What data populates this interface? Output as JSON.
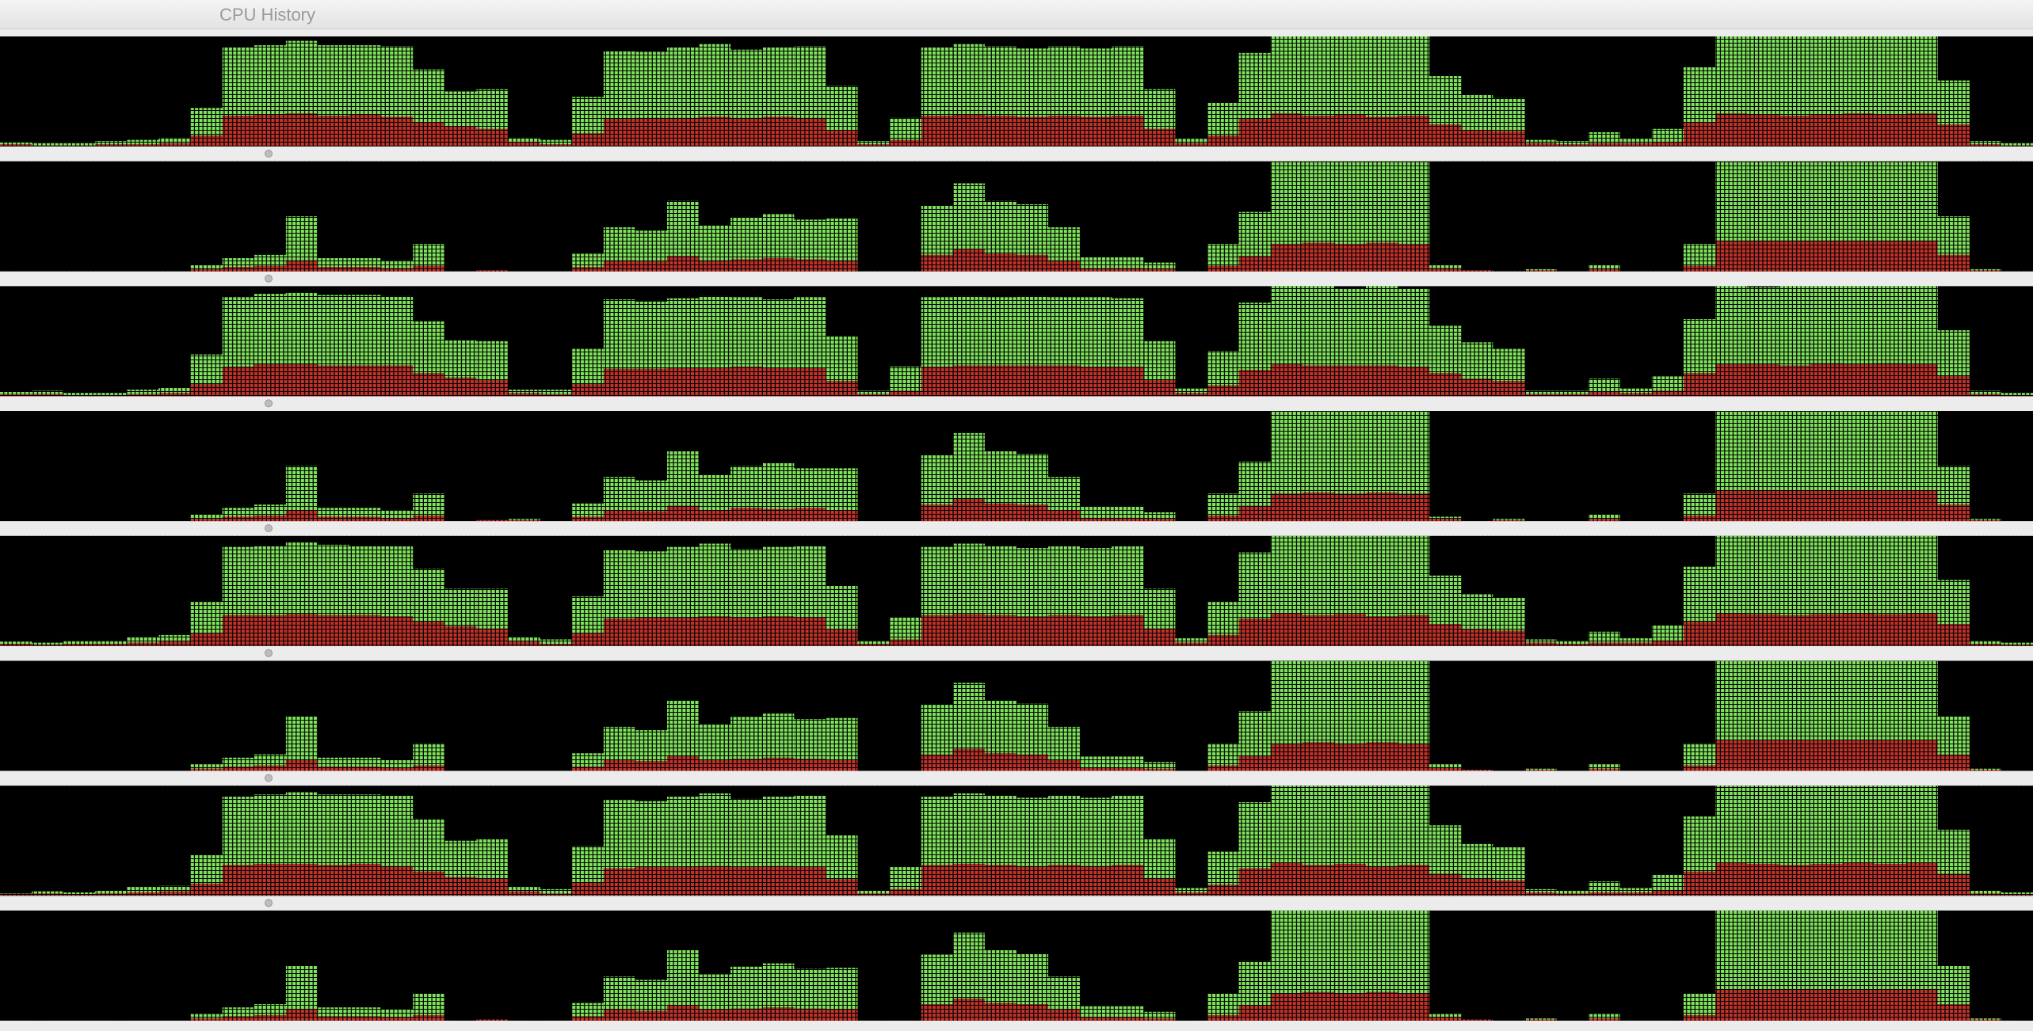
{
  "window": {
    "title": "CPU History"
  },
  "chart_data": [
    {
      "type": "bar",
      "stacked": true,
      "ylim": [
        0,
        100
      ],
      "series": [
        {
          "color": "#c3332b",
          "values": [
            2,
            1,
            1,
            2,
            2,
            3,
            10,
            28,
            29,
            30,
            28,
            29,
            27,
            22,
            18,
            16,
            4,
            2,
            12,
            25,
            26,
            26,
            27,
            26,
            27,
            26,
            15,
            2,
            6,
            28,
            29,
            28,
            27,
            28,
            27,
            28,
            16,
            3,
            10,
            25,
            30,
            28,
            29,
            27,
            28,
            20,
            15,
            14,
            3,
            2,
            3,
            3,
            4,
            22,
            30,
            29,
            28,
            29,
            30,
            29,
            30,
            20,
            2,
            1
          ]
        },
        {
          "color": "#7fe35b",
          "values": [
            2,
            2,
            2,
            3,
            4,
            5,
            25,
            62,
            63,
            66,
            64,
            63,
            64,
            48,
            32,
            36,
            4,
            4,
            33,
            62,
            60,
            64,
            66,
            62,
            63,
            65,
            40,
            3,
            20,
            62,
            64,
            63,
            62,
            63,
            62,
            63,
            36,
            4,
            30,
            60,
            70,
            72,
            71,
            73,
            72,
            44,
            32,
            30,
            3,
            3,
            10,
            4,
            12,
            50,
            70,
            71,
            72,
            71,
            70,
            71,
            70,
            40,
            3,
            2
          ]
        }
      ]
    },
    {
      "type": "bar",
      "stacked": true,
      "ylim": [
        0,
        100
      ],
      "series": [
        {
          "color": "#c3332b",
          "values": [
            0,
            0,
            0,
            0,
            0,
            0,
            2,
            4,
            5,
            10,
            4,
            4,
            3,
            5,
            0,
            1,
            0,
            0,
            4,
            10,
            9,
            14,
            10,
            11,
            12,
            11,
            10,
            0,
            0,
            15,
            20,
            16,
            15,
            10,
            3,
            3,
            2,
            0,
            5,
            14,
            25,
            26,
            25,
            26,
            25,
            3,
            1,
            0,
            1,
            0,
            2,
            0,
            0,
            5,
            28,
            28,
            28,
            28,
            28,
            28,
            28,
            15,
            1,
            0
          ]
        },
        {
          "color": "#7fe35b",
          "values": [
            0,
            0,
            0,
            0,
            0,
            0,
            4,
            8,
            10,
            40,
            8,
            8,
            7,
            20,
            0,
            0,
            0,
            0,
            12,
            30,
            28,
            50,
            32,
            38,
            40,
            36,
            38,
            0,
            0,
            45,
            60,
            48,
            46,
            30,
            10,
            10,
            6,
            0,
            20,
            40,
            75,
            74,
            75,
            74,
            75,
            3,
            0,
            0,
            1,
            0,
            4,
            0,
            0,
            20,
            72,
            72,
            72,
            72,
            72,
            72,
            72,
            35,
            1,
            0
          ]
        }
      ]
    },
    {
      "type": "bar",
      "stacked": true,
      "ylim": [
        0,
        100
      ],
      "series": [
        {
          "color": "#c3332b",
          "values": [
            2,
            2,
            1,
            1,
            2,
            3,
            11,
            27,
            29,
            29,
            28,
            28,
            28,
            21,
            17,
            15,
            3,
            2,
            11,
            25,
            25,
            26,
            26,
            27,
            26,
            26,
            14,
            2,
            5,
            27,
            28,
            28,
            28,
            28,
            27,
            27,
            15,
            3,
            10,
            24,
            29,
            28,
            28,
            28,
            27,
            21,
            16,
            14,
            2,
            2,
            4,
            3,
            5,
            21,
            29,
            29,
            28,
            30,
            29,
            30,
            29,
            19,
            2,
            1
          ]
        },
        {
          "color": "#7fe35b",
          "values": [
            2,
            3,
            2,
            2,
            4,
            5,
            27,
            63,
            64,
            65,
            64,
            64,
            63,
            47,
            34,
            35,
            3,
            4,
            32,
            63,
            61,
            63,
            65,
            63,
            62,
            64,
            41,
            3,
            22,
            63,
            63,
            62,
            63,
            62,
            63,
            62,
            35,
            4,
            31,
            61,
            71,
            72,
            70,
            72,
            71,
            43,
            33,
            29,
            3,
            3,
            12,
            4,
            13,
            49,
            71,
            70,
            72,
            70,
            71,
            70,
            71,
            41,
            3,
            2
          ]
        }
      ]
    },
    {
      "type": "bar",
      "stacked": true,
      "ylim": [
        0,
        100
      ],
      "series": [
        {
          "color": "#c3332b",
          "values": [
            0,
            0,
            0,
            0,
            0,
            0,
            2,
            4,
            5,
            10,
            4,
            4,
            3,
            5,
            0,
            1,
            1,
            0,
            4,
            10,
            9,
            14,
            10,
            12,
            11,
            12,
            10,
            0,
            0,
            15,
            20,
            16,
            15,
            10,
            3,
            3,
            2,
            0,
            5,
            14,
            25,
            26,
            25,
            26,
            25,
            2,
            0,
            1,
            0,
            0,
            2,
            0,
            0,
            5,
            28,
            28,
            28,
            28,
            28,
            28,
            28,
            15,
            1,
            0
          ]
        },
        {
          "color": "#7fe35b",
          "values": [
            0,
            0,
            0,
            0,
            0,
            0,
            4,
            8,
            10,
            40,
            8,
            8,
            7,
            20,
            0,
            0,
            1,
            0,
            12,
            30,
            28,
            50,
            32,
            38,
            42,
            36,
            38,
            0,
            0,
            45,
            60,
            48,
            46,
            30,
            10,
            10,
            6,
            0,
            20,
            40,
            75,
            74,
            75,
            74,
            75,
            2,
            0,
            1,
            0,
            0,
            4,
            0,
            0,
            20,
            72,
            72,
            72,
            72,
            72,
            72,
            72,
            35,
            1,
            0
          ]
        }
      ]
    },
    {
      "type": "bar",
      "stacked": true,
      "ylim": [
        0,
        100
      ],
      "series": [
        {
          "color": "#c3332b",
          "values": [
            2,
            1,
            2,
            2,
            3,
            4,
            12,
            28,
            28,
            29,
            28,
            28,
            27,
            22,
            18,
            16,
            4,
            2,
            12,
            25,
            26,
            26,
            27,
            26,
            27,
            26,
            15,
            2,
            6,
            28,
            29,
            28,
            27,
            28,
            27,
            28,
            16,
            3,
            10,
            25,
            30,
            28,
            29,
            27,
            28,
            20,
            15,
            14,
            3,
            2,
            3,
            3,
            5,
            22,
            30,
            29,
            28,
            29,
            30,
            29,
            30,
            20,
            2,
            1
          ]
        },
        {
          "color": "#7fe35b",
          "values": [
            2,
            2,
            3,
            3,
            5,
            6,
            28,
            62,
            63,
            65,
            64,
            63,
            64,
            48,
            34,
            36,
            4,
            4,
            33,
            62,
            60,
            64,
            66,
            62,
            63,
            65,
            40,
            3,
            20,
            62,
            64,
            63,
            62,
            63,
            62,
            63,
            36,
            4,
            30,
            60,
            70,
            72,
            71,
            73,
            72,
            44,
            32,
            30,
            3,
            3,
            10,
            4,
            14,
            50,
            70,
            71,
            72,
            71,
            70,
            71,
            70,
            40,
            3,
            2
          ]
        }
      ]
    },
    {
      "type": "bar",
      "stacked": true,
      "ylim": [
        0,
        100
      ],
      "series": [
        {
          "color": "#c3332b",
          "values": [
            0,
            0,
            0,
            0,
            0,
            0,
            2,
            4,
            5,
            10,
            4,
            4,
            3,
            5,
            0,
            0,
            0,
            0,
            4,
            10,
            9,
            14,
            10,
            11,
            12,
            11,
            10,
            0,
            0,
            15,
            20,
            16,
            15,
            10,
            3,
            3,
            2,
            0,
            5,
            14,
            25,
            26,
            25,
            26,
            25,
            3,
            1,
            0,
            1,
            0,
            2,
            0,
            0,
            5,
            28,
            28,
            28,
            28,
            28,
            28,
            28,
            15,
            1,
            0
          ]
        },
        {
          "color": "#7fe35b",
          "values": [
            0,
            0,
            0,
            0,
            0,
            0,
            4,
            8,
            10,
            40,
            8,
            8,
            7,
            20,
            0,
            0,
            0,
            0,
            12,
            30,
            28,
            50,
            32,
            38,
            40,
            36,
            38,
            0,
            0,
            45,
            60,
            48,
            46,
            30,
            10,
            10,
            6,
            0,
            20,
            40,
            75,
            74,
            75,
            74,
            75,
            3,
            0,
            0,
            1,
            0,
            4,
            0,
            0,
            20,
            72,
            72,
            72,
            72,
            72,
            72,
            72,
            35,
            1,
            0
          ]
        }
      ]
    },
    {
      "type": "bar",
      "stacked": true,
      "ylim": [
        0,
        100
      ],
      "series": [
        {
          "color": "#c3332b",
          "values": [
            1,
            2,
            1,
            2,
            3,
            4,
            11,
            28,
            29,
            29,
            28,
            29,
            27,
            22,
            17,
            16,
            4,
            2,
            12,
            25,
            26,
            26,
            27,
            26,
            27,
            26,
            15,
            2,
            6,
            28,
            29,
            28,
            27,
            28,
            27,
            28,
            16,
            3,
            10,
            25,
            30,
            28,
            29,
            27,
            28,
            20,
            16,
            14,
            3,
            2,
            3,
            3,
            5,
            22,
            30,
            29,
            28,
            29,
            30,
            29,
            30,
            20,
            2,
            1
          ]
        },
        {
          "color": "#7fe35b",
          "values": [
            1,
            2,
            2,
            3,
            5,
            5,
            26,
            62,
            63,
            65,
            64,
            63,
            64,
            48,
            33,
            36,
            4,
            4,
            33,
            62,
            60,
            64,
            66,
            62,
            63,
            65,
            40,
            3,
            20,
            62,
            64,
            63,
            62,
            63,
            62,
            63,
            36,
            4,
            30,
            60,
            70,
            72,
            71,
            73,
            72,
            44,
            31,
            30,
            3,
            3,
            10,
            4,
            14,
            50,
            70,
            71,
            72,
            71,
            70,
            71,
            70,
            40,
            3,
            2
          ]
        }
      ]
    },
    {
      "type": "bar",
      "stacked": true,
      "ylim": [
        0,
        100
      ],
      "series": [
        {
          "color": "#c3332b",
          "values": [
            0,
            0,
            0,
            0,
            0,
            0,
            2,
            4,
            5,
            10,
            4,
            4,
            3,
            5,
            0,
            1,
            0,
            0,
            4,
            10,
            9,
            14,
            10,
            11,
            12,
            11,
            10,
            0,
            0,
            15,
            20,
            16,
            15,
            10,
            3,
            3,
            2,
            0,
            5,
            14,
            25,
            26,
            25,
            26,
            25,
            3,
            1,
            0,
            1,
            0,
            2,
            0,
            0,
            5,
            28,
            28,
            28,
            28,
            28,
            28,
            28,
            15,
            1,
            0
          ]
        },
        {
          "color": "#7fe35b",
          "values": [
            0,
            0,
            0,
            0,
            0,
            0,
            4,
            8,
            10,
            40,
            8,
            8,
            7,
            20,
            0,
            0,
            0,
            0,
            12,
            30,
            28,
            50,
            32,
            38,
            40,
            36,
            38,
            0,
            0,
            45,
            60,
            48,
            46,
            30,
            10,
            10,
            6,
            0,
            20,
            40,
            75,
            74,
            75,
            74,
            75,
            3,
            0,
            0,
            1,
            0,
            4,
            0,
            0,
            20,
            72,
            72,
            72,
            72,
            72,
            72,
            72,
            35,
            1,
            0
          ]
        }
      ]
    }
  ]
}
